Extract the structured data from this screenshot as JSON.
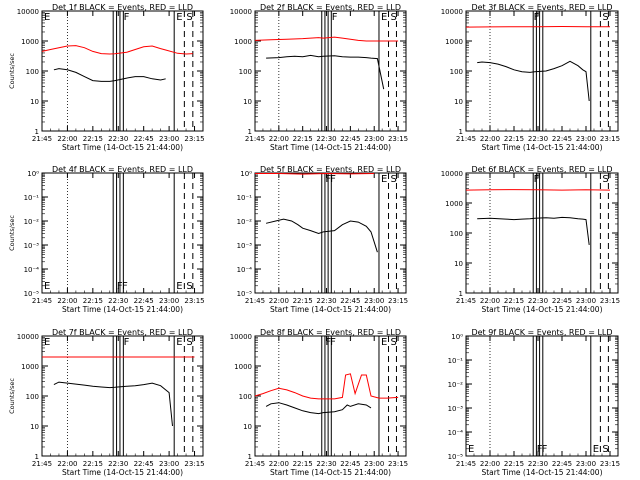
{
  "chart_data": [
    {
      "type": "line",
      "title": "Det 1f BLACK = Events, RED = LLD",
      "xlabel": "Start Time (14-Oct-15 21:44:00)",
      "ylabel": "Counts/sec",
      "xtick_labels": [
        "21:45",
        "22:00",
        "22:15",
        "22:30",
        "22:45",
        "23:00",
        "23:15"
      ],
      "ytick_labels": [
        "1",
        "10",
        "100",
        "1000",
        "10000"
      ],
      "ylim": [
        1,
        10000
      ],
      "markers": [
        {
          "x": "21:45",
          "label": "E"
        },
        {
          "x": "22:32",
          "label": "F"
        },
        {
          "x": "23:03",
          "label": "E"
        },
        {
          "x": "23:09",
          "label": "S"
        }
      ],
      "series": [
        {
          "color": "#ff0000",
          "x": [
            "21:45",
            "21:50",
            "21:55",
            "22:00",
            "22:05",
            "22:10",
            "22:15",
            "22:20",
            "22:25",
            "22:28",
            "22:35",
            "22:40",
            "22:45",
            "22:50",
            "22:55",
            "22:58",
            "23:05",
            "23:10",
            "23:14"
          ],
          "values": [
            450,
            520,
            600,
            680,
            700,
            600,
            450,
            380,
            370,
            375,
            420,
            520,
            640,
            680,
            560,
            500,
            390,
            370,
            380
          ]
        },
        {
          "color": "#000000",
          "x": [
            "21:52",
            "21:55",
            "22:00",
            "22:05",
            "22:10",
            "22:15",
            "22:20",
            "22:25",
            "22:28",
            "22:35",
            "22:40",
            "22:45",
            "22:50",
            "22:55",
            "22:58"
          ],
          "values": [
            110,
            120,
            110,
            90,
            65,
            48,
            45,
            45,
            48,
            58,
            65,
            65,
            55,
            50,
            55
          ]
        }
      ]
    },
    {
      "type": "line",
      "title": "Det 2f BLACK = Events, RED = LLD",
      "xlabel": "Start Time (14-Oct-15 21:44:00)",
      "ylabel": "",
      "xtick_labels": [
        "21:45",
        "22:00",
        "22:15",
        "22:30",
        "22:45",
        "23:00",
        "23:15"
      ],
      "ytick_labels": [
        "1",
        "10",
        "100",
        "1000",
        "10000"
      ],
      "ylim": [
        1,
        10000
      ],
      "markers": [
        {
          "x": "22:32",
          "label": "F"
        },
        {
          "x": "23:03",
          "label": "E"
        },
        {
          "x": "23:09",
          "label": "S"
        }
      ],
      "series": [
        {
          "color": "#ff0000",
          "x": [
            "21:45",
            "21:55",
            "22:05",
            "22:15",
            "22:20",
            "22:25",
            "22:28",
            "22:35",
            "22:40",
            "22:45",
            "22:50",
            "22:55",
            "23:00",
            "23:05",
            "23:15"
          ],
          "values": [
            1050,
            1100,
            1150,
            1200,
            1250,
            1300,
            1250,
            1350,
            1250,
            1150,
            1050,
            1000,
            1000,
            1000,
            1000
          ]
        },
        {
          "color": "#000000",
          "x": [
            "21:52",
            "22:00",
            "22:05",
            "22:10",
            "22:15",
            "22:20",
            "22:25",
            "22:28",
            "22:35",
            "22:40",
            "22:45",
            "22:50",
            "22:55",
            "22:58",
            "23:02",
            "23:06"
          ],
          "values": [
            270,
            280,
            300,
            310,
            300,
            330,
            300,
            310,
            320,
            300,
            290,
            290,
            280,
            270,
            260,
            25
          ]
        }
      ]
    },
    {
      "type": "line",
      "title": "Det 3f BLACK = Events, RED = LLD",
      "xlabel": "Start Time (14-Oct-15 21:44:00)",
      "ylabel": "",
      "xtick_labels": [
        "21:45",
        "22:00",
        "22:15",
        "22:30",
        "22:45",
        "23:00",
        "23:15"
      ],
      "ytick_labels": [
        "1",
        "10",
        "100",
        "1000",
        "10000"
      ],
      "ylim": [
        1,
        10000
      ],
      "markers": [
        {
          "x": "22:26",
          "label": "F"
        },
        {
          "x": "23:09",
          "label": "S"
        }
      ],
      "series": [
        {
          "color": "#ff0000",
          "x": [
            "21:45",
            "22:00",
            "22:15",
            "22:30",
            "22:45",
            "23:00",
            "23:15"
          ],
          "values": [
            2900,
            2950,
            3000,
            3000,
            3050,
            3000,
            3000
          ]
        },
        {
          "color": "#000000",
          "x": [
            "21:52",
            "21:55",
            "22:00",
            "22:05",
            "22:10",
            "22:15",
            "22:20",
            "22:25",
            "22:28",
            "22:35",
            "22:40",
            "22:45",
            "22:50",
            "22:55",
            "22:58",
            "23:00",
            "23:02"
          ],
          "values": [
            190,
            200,
            190,
            170,
            140,
            110,
            95,
            90,
            95,
            100,
            120,
            150,
            210,
            150,
            110,
            95,
            10
          ]
        }
      ]
    },
    {
      "type": "line",
      "title": "Det 4f BLACK = Events, RED = LLD",
      "xlabel": "Start Time (14-Oct-15 21:44:00)",
      "ylabel": "Counts/sec",
      "xtick_labels": [
        "21:45",
        "22:00",
        "22:15",
        "22:30",
        "22:45",
        "23:00",
        "23:15"
      ],
      "ytick_labels": [
        "10⁻⁵",
        "10⁻⁴",
        "10⁻³",
        "10⁻²",
        "10⁻¹",
        "10⁰"
      ],
      "ylim": [
        1e-05,
        1
      ],
      "markers": [
        {
          "x": "21:45",
          "label": "E"
        },
        {
          "x": "22:28",
          "label": "F"
        },
        {
          "x": "22:31",
          "label": "F"
        },
        {
          "x": "23:03",
          "label": "E"
        },
        {
          "x": "23:09",
          "label": "S"
        }
      ],
      "series": []
    },
    {
      "type": "line",
      "title": "Det 5f BLACK = Events, RED = LLD",
      "xlabel": "Start Time (14-Oct-15 21:44:00)",
      "ylabel": "",
      "xtick_labels": [
        "21:45",
        "22:00",
        "22:15",
        "22:30",
        "22:45",
        "23:00",
        "23:15"
      ],
      "ytick_labels": [
        "10⁻⁵",
        "10⁻⁴",
        "10⁻³",
        "10⁻²",
        "10⁻¹",
        "10⁰"
      ],
      "ylim": [
        1e-05,
        1
      ],
      "markers": [
        {
          "x": "22:28",
          "label": "F"
        },
        {
          "x": "22:31",
          "label": "F"
        },
        {
          "x": "23:03",
          "label": "E"
        },
        {
          "x": "23:09",
          "label": "S"
        }
      ],
      "series": [
        {
          "color": "#ff0000",
          "x": [
            "21:45",
            "22:00",
            "22:15",
            "22:30",
            "22:45",
            "23:00"
          ],
          "values": [
            0.95,
            0.95,
            0.9,
            0.95,
            0.92,
            0.95
          ]
        },
        {
          "color": "#000000",
          "x": [
            "21:52",
            "21:58",
            "22:03",
            "22:08",
            "22:12",
            "22:15",
            "22:20",
            "22:25",
            "22:28",
            "22:35",
            "22:40",
            "22:45",
            "22:50",
            "22:55",
            "22:58",
            "23:02"
          ],
          "values": [
            0.008,
            0.01,
            0.012,
            0.01,
            0.007,
            0.005,
            0.004,
            0.003,
            0.0035,
            0.004,
            0.007,
            0.01,
            0.009,
            0.006,
            0.0035,
            0.0005
          ]
        }
      ]
    },
    {
      "type": "line",
      "title": "Det 6f BLACK = Events, RED = LLD",
      "xlabel": "Start Time (14-Oct-15 21:44:00)",
      "ylabel": "",
      "xtick_labels": [
        "21:45",
        "22:00",
        "22:15",
        "22:30",
        "22:45",
        "23:00",
        "23:15"
      ],
      "ytick_labels": [
        "1",
        "10",
        "100",
        "1000",
        "10000"
      ],
      "ylim": [
        1,
        10000
      ],
      "markers": [
        {
          "x": "22:26",
          "label": "F"
        },
        {
          "x": "23:09",
          "label": "S"
        }
      ],
      "series": [
        {
          "color": "#ff0000",
          "x": [
            "21:45",
            "22:00",
            "22:15",
            "22:30",
            "22:45",
            "23:00",
            "23:15"
          ],
          "values": [
            2700,
            2750,
            2800,
            2750,
            2700,
            2750,
            2700
          ]
        },
        {
          "color": "#000000",
          "x": [
            "21:52",
            "22:00",
            "22:10",
            "22:15",
            "22:20",
            "22:25",
            "22:28",
            "22:35",
            "22:40",
            "22:45",
            "22:50",
            "22:55",
            "22:58",
            "23:00",
            "23:02"
          ],
          "values": [
            300,
            310,
            290,
            280,
            290,
            300,
            310,
            320,
            310,
            330,
            320,
            300,
            290,
            280,
            40
          ]
        }
      ]
    },
    {
      "type": "line",
      "title": "Det 7f BLACK = Events, RED = LLD",
      "xlabel": "Start Time (14-Oct-15 21:44:00)",
      "ylabel": "Counts/sec",
      "xtick_labels": [
        "21:45",
        "22:00",
        "22:15",
        "22:30",
        "22:45",
        "23:00",
        "23:15"
      ],
      "ytick_labels": [
        "1",
        "10",
        "100",
        "1000",
        "10000"
      ],
      "ylim": [
        1,
        10000
      ],
      "markers": [
        {
          "x": "21:45",
          "label": "E"
        },
        {
          "x": "22:32",
          "label": "F"
        },
        {
          "x": "23:03",
          "label": "E"
        },
        {
          "x": "23:09",
          "label": "S"
        }
      ],
      "series": [
        {
          "color": "#ff0000",
          "x": [
            "21:45",
            "22:00",
            "22:15",
            "22:30",
            "22:45",
            "23:00",
            "23:15"
          ],
          "values": [
            2000,
            2000,
            2000,
            2000,
            2000,
            2000,
            2000
          ]
        },
        {
          "color": "#000000",
          "x": [
            "21:52",
            "21:55",
            "22:00",
            "22:05",
            "22:10",
            "22:15",
            "22:20",
            "22:25",
            "22:28",
            "22:35",
            "22:40",
            "22:45",
            "22:50",
            "22:55",
            "22:58",
            "23:00",
            "23:02"
          ],
          "values": [
            240,
            290,
            270,
            250,
            230,
            210,
            200,
            190,
            195,
            210,
            220,
            240,
            270,
            220,
            160,
            130,
            10
          ]
        }
      ]
    },
    {
      "type": "line",
      "title": "Det 8f BLACK = Events, RED = LLD",
      "xlabel": "Start Time (14-Oct-15 21:44:00)",
      "ylabel": "",
      "xtick_labels": [
        "21:45",
        "22:00",
        "22:15",
        "22:30",
        "22:45",
        "23:00",
        "23:15"
      ],
      "ytick_labels": [
        "1",
        "10",
        "100",
        "1000",
        "10000"
      ],
      "ylim": [
        1,
        10000
      ],
      "markers": [
        {
          "x": "22:28",
          "label": "F"
        },
        {
          "x": "22:31",
          "label": "F"
        },
        {
          "x": "23:03",
          "label": "E"
        },
        {
          "x": "23:09",
          "label": "S"
        }
      ],
      "series": [
        {
          "color": "#ff0000",
          "x": [
            "21:45",
            "21:50",
            "21:55",
            "22:00",
            "22:05",
            "22:10",
            "22:15",
            "22:20",
            "22:25",
            "22:28",
            "22:35",
            "22:40",
            "22:42",
            "22:45",
            "22:48",
            "22:52",
            "22:55",
            "22:58",
            "23:03",
            "23:08",
            "23:15"
          ],
          "values": [
            100,
            120,
            150,
            180,
            160,
            130,
            100,
            85,
            80,
            80,
            80,
            90,
            500,
            550,
            120,
            500,
            500,
            100,
            85,
            85,
            90
          ]
        },
        {
          "color": "#000000",
          "x": [
            "21:52",
            "21:55",
            "22:00",
            "22:05",
            "22:10",
            "22:15",
            "22:20",
            "22:25",
            "22:28",
            "22:35",
            "22:40",
            "22:43",
            "22:45",
            "22:50",
            "22:55",
            "22:58"
          ],
          "values": [
            45,
            55,
            60,
            50,
            40,
            32,
            28,
            26,
            28,
            30,
            35,
            50,
            45,
            55,
            50,
            40
          ]
        }
      ]
    },
    {
      "type": "line",
      "title": "Det 9f BLACK = Events, RED = LLD",
      "xlabel": "Start Time (14-Oct-15 21:44:00)",
      "ylabel": "",
      "xtick_labels": [
        "21:45",
        "22:00",
        "22:15",
        "22:30",
        "22:45",
        "23:00",
        "23:15"
      ],
      "ytick_labels": [
        "10⁻⁵",
        "10⁻⁴",
        "10⁻³",
        "10⁻²",
        "10⁻¹",
        "10⁰"
      ],
      "ylim": [
        1e-05,
        1
      ],
      "markers": [
        {
          "x": "21:45",
          "label": "E"
        },
        {
          "x": "22:28",
          "label": "F"
        },
        {
          "x": "22:31",
          "label": "F"
        },
        {
          "x": "23:03",
          "label": "E"
        },
        {
          "x": "23:09",
          "label": "S"
        }
      ],
      "series": []
    }
  ]
}
